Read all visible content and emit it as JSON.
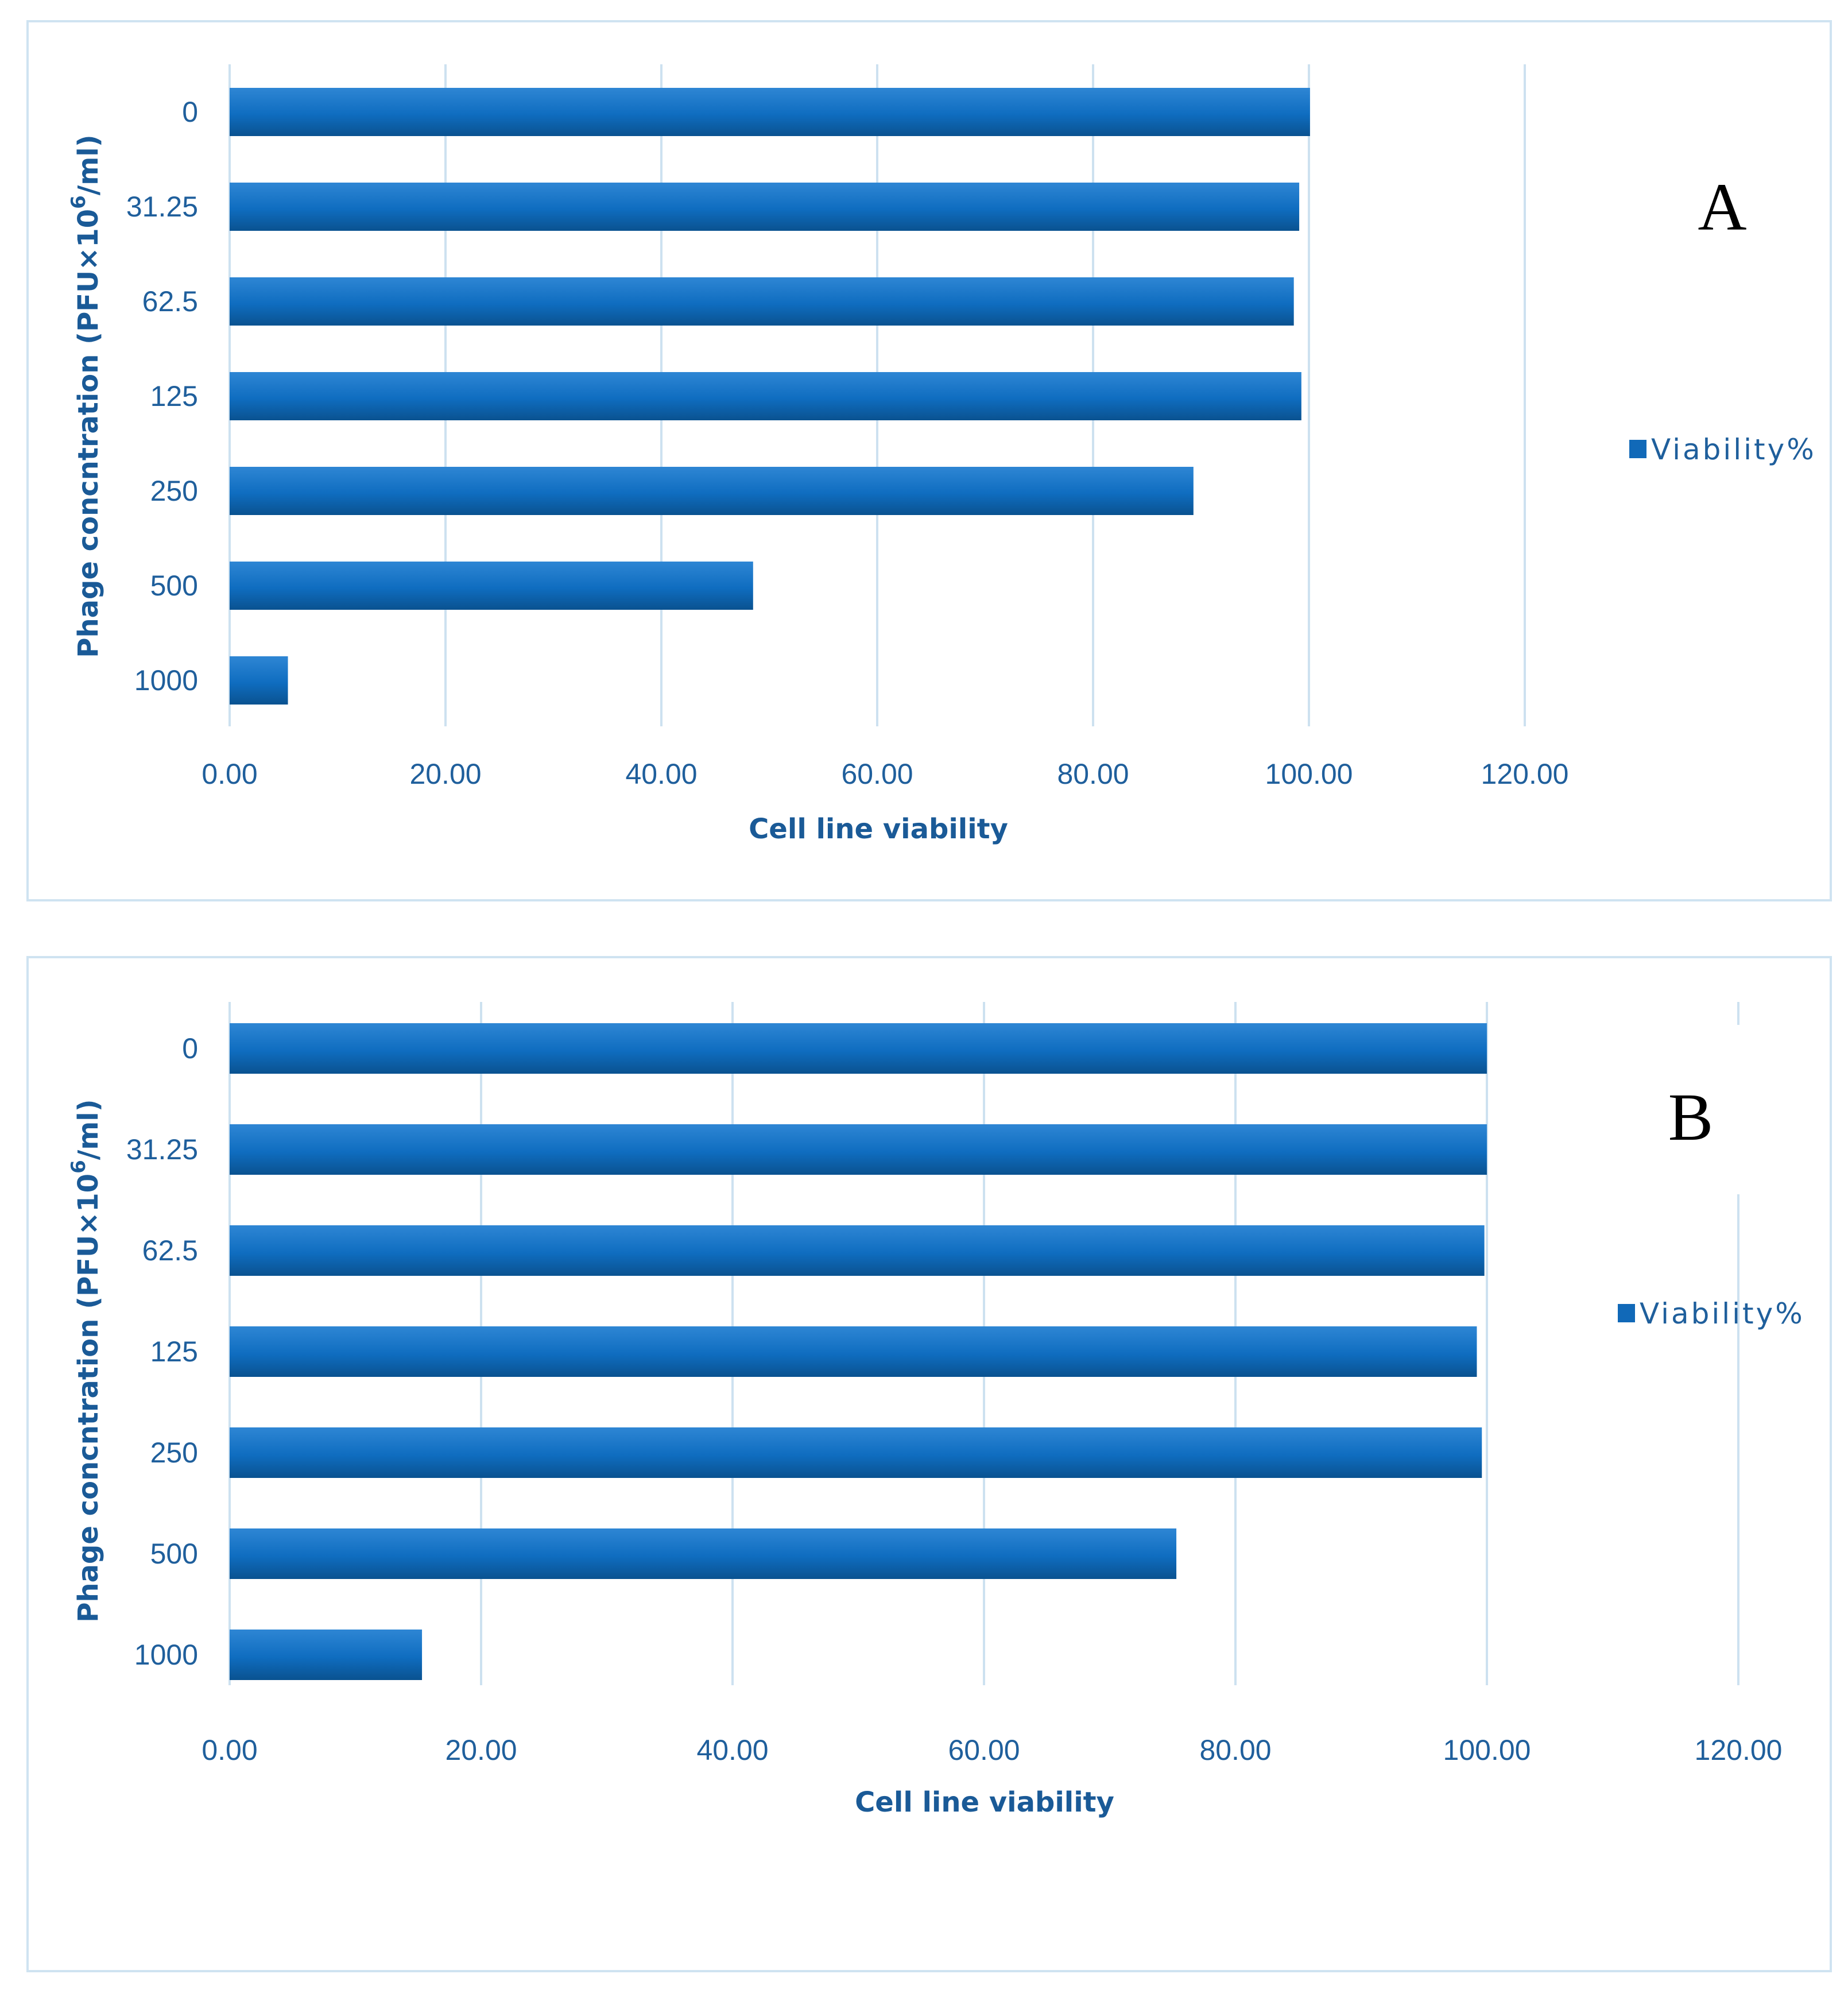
{
  "colors": {
    "bar_top": "#2e86d4",
    "bar_mid": "#0f6dc0",
    "bar_bottom": "#0a5290",
    "legend_swatch": "#1169b8"
  },
  "chart_data": [
    {
      "type": "bar",
      "orientation": "horizontal",
      "panel_label": "A",
      "categories": [
        "0",
        "31.25",
        "62.5",
        "125",
        "250",
        "500",
        "1000"
      ],
      "series": [
        {
          "name": "Viability%",
          "values": [
            100.1,
            99.1,
            98.6,
            99.3,
            89.3,
            48.5,
            5.4
          ]
        }
      ],
      "xlabel": "Cell line viability",
      "ylabel": "Phage concntration (PFU×10",
      "ylabel_sup": "6",
      "ylabel_tail": "/ml)",
      "xlim": [
        0,
        120
      ],
      "xticks": [
        "0.00",
        "20.00",
        "40.00",
        "60.00",
        "80.00",
        "100.00",
        "120.00"
      ],
      "grid": true,
      "legend": "right"
    },
    {
      "type": "bar",
      "orientation": "horizontal",
      "panel_label": "B",
      "categories": [
        "0",
        "31.25",
        "62.5",
        "125",
        "250",
        "500",
        "1000"
      ],
      "series": [
        {
          "name": "Viability%",
          "values": [
            100.0,
            100.0,
            99.8,
            99.2,
            99.6,
            75.3,
            15.3
          ]
        }
      ],
      "xlabel": "Cell line viability",
      "ylabel": "Phage concntration (PFU×10",
      "ylabel_sup": "6",
      "ylabel_tail": "/ml)",
      "xlim": [
        0,
        120
      ],
      "xticks": [
        "0.00",
        "20.00",
        "40.00",
        "60.00",
        "80.00",
        "100.00",
        "120.00"
      ],
      "grid": true,
      "legend": "right"
    }
  ]
}
